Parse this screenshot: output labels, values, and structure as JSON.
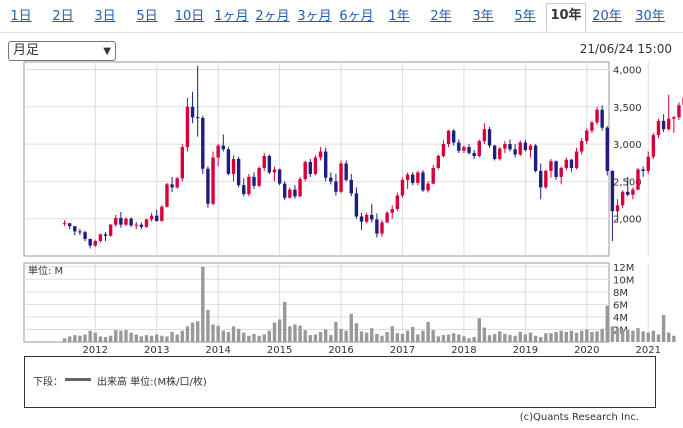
{
  "tabs": [
    {
      "label": "1日",
      "active": false
    },
    {
      "label": "2日",
      "active": false
    },
    {
      "label": "3日",
      "active": false
    },
    {
      "label": "5日",
      "active": false
    },
    {
      "label": "10日",
      "active": false
    },
    {
      "label": "1ヶ月",
      "active": false
    },
    {
      "label": "2ヶ月",
      "active": false
    },
    {
      "label": "3ヶ月",
      "active": false
    },
    {
      "label": "6ヶ月",
      "active": false
    },
    {
      "label": "1年",
      "active": false
    },
    {
      "label": "2年",
      "active": false
    },
    {
      "label": "3年",
      "active": false
    },
    {
      "label": "5年",
      "active": false
    },
    {
      "label": "10年",
      "active": true
    },
    {
      "label": "20年",
      "active": false
    },
    {
      "label": "30年",
      "active": false
    }
  ],
  "period_select": {
    "value": "月足"
  },
  "timestamp": "21/06/24 15:00",
  "volume_unit_label": "単位: M",
  "legend": {
    "label": "下段：",
    "item": "出来高 単位:(M株/口/枚)"
  },
  "credit": "(c)Quants Research Inc.",
  "colors": {
    "up": "#d8003a",
    "down": "#1e1e82",
    "volume": "#999999",
    "grid": "#dddddd"
  },
  "chart_data": [
    {
      "type": "candlestick",
      "title": "",
      "x_tick_labels": [
        "2012",
        "2013",
        "2014",
        "2015",
        "2016",
        "2017",
        "2018",
        "2019",
        "2020",
        "2021"
      ],
      "y_tick_labels": [
        "2,000",
        "2,500",
        "3,000",
        "3,500",
        "4,000"
      ],
      "ylim": [
        1500,
        4100
      ],
      "grid": true,
      "start": "2011-07",
      "end": "2021-06",
      "ohlc": [
        [
          1930,
          1980,
          1900,
          1940
        ],
        [
          1940,
          1920,
          1860,
          1900
        ],
        [
          1900,
          1880,
          1780,
          1830
        ],
        [
          1830,
          1860,
          1780,
          1820
        ],
        [
          1820,
          1840,
          1700,
          1730
        ],
        [
          1730,
          1730,
          1600,
          1640
        ],
        [
          1640,
          1720,
          1620,
          1700
        ],
        [
          1700,
          1800,
          1680,
          1790
        ],
        [
          1790,
          1820,
          1700,
          1770
        ],
        [
          1770,
          1930,
          1760,
          1920
        ],
        [
          1920,
          2050,
          1890,
          2010
        ],
        [
          2010,
          2090,
          1880,
          1920
        ],
        [
          1920,
          2020,
          1900,
          2000
        ],
        [
          2000,
          2020,
          1890,
          1910
        ],
        [
          1910,
          1960,
          1860,
          1920
        ],
        [
          1920,
          1950,
          1860,
          1890
        ],
        [
          1890,
          2000,
          1880,
          1990
        ],
        [
          1990,
          2080,
          1960,
          2040
        ],
        [
          2040,
          2120,
          1960,
          1970
        ],
        [
          1970,
          2180,
          1960,
          2160
        ],
        [
          2160,
          2480,
          2150,
          2460
        ],
        [
          2460,
          2560,
          2360,
          2420
        ],
        [
          2420,
          2560,
          2400,
          2540
        ],
        [
          2540,
          3000,
          2500,
          2960
        ],
        [
          2960,
          3620,
          2900,
          3500
        ],
        [
          3500,
          3700,
          3280,
          3360
        ],
        [
          3360,
          4050,
          3100,
          3350
        ],
        [
          3350,
          3380,
          2600,
          2670
        ],
        [
          2670,
          2700,
          2150,
          2200
        ],
        [
          2200,
          2900,
          2180,
          2820
        ],
        [
          2820,
          3000,
          2700,
          2980
        ],
        [
          2980,
          3130,
          2900,
          2930
        ],
        [
          2930,
          2960,
          2580,
          2600
        ],
        [
          2600,
          2850,
          2500,
          2800
        ],
        [
          2800,
          2830,
          2420,
          2450
        ],
        [
          2450,
          2540,
          2300,
          2330
        ],
        [
          2330,
          2600,
          2300,
          2560
        ],
        [
          2560,
          2620,
          2400,
          2440
        ],
        [
          2440,
          2700,
          2420,
          2680
        ],
        [
          2680,
          2880,
          2640,
          2840
        ],
        [
          2840,
          2860,
          2600,
          2620
        ],
        [
          2620,
          2700,
          2500,
          2660
        ],
        [
          2660,
          2670,
          2450,
          2470
        ],
        [
          2470,
          2500,
          2250,
          2280
        ],
        [
          2280,
          2420,
          2270,
          2390
        ],
        [
          2390,
          2450,
          2270,
          2300
        ],
        [
          2300,
          2560,
          2290,
          2530
        ],
        [
          2530,
          2780,
          2500,
          2760
        ],
        [
          2760,
          2800,
          2560,
          2600
        ],
        [
          2600,
          2850,
          2580,
          2820
        ],
        [
          2820,
          2960,
          2780,
          2900
        ],
        [
          2900,
          2950,
          2500,
          2550
        ],
        [
          2550,
          2620,
          2460,
          2500
        ],
        [
          2500,
          2600,
          2310,
          2360
        ],
        [
          2360,
          2780,
          2340,
          2740
        ],
        [
          2740,
          2780,
          2500,
          2520
        ],
        [
          2520,
          2600,
          2300,
          2340
        ],
        [
          2340,
          2420,
          2000,
          2030
        ],
        [
          2030,
          2080,
          1850,
          1960
        ],
        [
          1960,
          2080,
          1940,
          2050
        ],
        [
          2050,
          2200,
          1950,
          1990
        ],
        [
          1990,
          2070,
          1750,
          1800
        ],
        [
          1800,
          1980,
          1760,
          1950
        ],
        [
          1950,
          2100,
          1940,
          2080
        ],
        [
          2080,
          2180,
          2000,
          2130
        ],
        [
          2130,
          2350,
          2100,
          2310
        ],
        [
          2310,
          2550,
          2280,
          2520
        ],
        [
          2520,
          2620,
          2400,
          2590
        ],
        [
          2590,
          2620,
          2450,
          2480
        ],
        [
          2480,
          2640,
          2450,
          2620
        ],
        [
          2620,
          2650,
          2360,
          2380
        ],
        [
          2380,
          2500,
          2350,
          2470
        ],
        [
          2470,
          2720,
          2460,
          2680
        ],
        [
          2680,
          2860,
          2660,
          2840
        ],
        [
          2840,
          3050,
          2820,
          3000
        ],
        [
          3000,
          3190,
          2960,
          3180
        ],
        [
          3180,
          3200,
          2980,
          3020
        ],
        [
          3020,
          3060,
          2880,
          2910
        ],
        [
          2910,
          2980,
          2880,
          2960
        ],
        [
          2960,
          3000,
          2860,
          2880
        ],
        [
          2880,
          2920,
          2800,
          2840
        ],
        [
          2840,
          3060,
          2820,
          3040
        ],
        [
          3040,
          3280,
          3000,
          3200
        ],
        [
          3200,
          3230,
          2950,
          2980
        ],
        [
          2980,
          2990,
          2780,
          2800
        ],
        [
          2800,
          2960,
          2780,
          2940
        ],
        [
          2940,
          3040,
          2880,
          3000
        ],
        [
          3000,
          3060,
          2900,
          2930
        ],
        [
          2930,
          3000,
          2820,
          2860
        ],
        [
          2860,
          3050,
          2840,
          3020
        ],
        [
          3020,
          3060,
          2900,
          2920
        ],
        [
          2920,
          3000,
          2820,
          2980
        ],
        [
          2980,
          3000,
          2620,
          2640
        ],
        [
          2640,
          2740,
          2260,
          2420
        ],
        [
          2420,
          2660,
          2400,
          2640
        ],
        [
          2640,
          2800,
          2550,
          2770
        ],
        [
          2770,
          2780,
          2520,
          2560
        ],
        [
          2560,
          2700,
          2460,
          2680
        ],
        [
          2680,
          2820,
          2650,
          2790
        ],
        [
          2790,
          2800,
          2630,
          2680
        ],
        [
          2680,
          2950,
          2660,
          2900
        ],
        [
          2900,
          3080,
          2860,
          3040
        ],
        [
          3040,
          3210,
          3000,
          3180
        ],
        [
          3180,
          3310,
          3150,
          3290
        ],
        [
          3290,
          3500,
          3260,
          3460
        ],
        [
          3460,
          3520,
          3180,
          3220
        ],
        [
          3220,
          3240,
          2580,
          2640
        ],
        [
          2640,
          2650,
          1700,
          2100
        ],
        [
          2100,
          2260,
          1950,
          2180
        ],
        [
          2180,
          2380,
          2140,
          2360
        ],
        [
          2360,
          2560,
          2300,
          2320
        ],
        [
          2320,
          2420,
          2260,
          2390
        ],
        [
          2390,
          2680,
          2380,
          2660
        ],
        [
          2660,
          2700,
          2560,
          2640
        ],
        [
          2640,
          2900,
          2600,
          2830
        ],
        [
          2830,
          3150,
          2800,
          3120
        ],
        [
          3120,
          3340,
          3080,
          3310
        ],
        [
          3310,
          3400,
          3160,
          3200
        ],
        [
          3200,
          3660,
          3180,
          3340
        ],
        [
          3340,
          3380,
          3150,
          3360
        ],
        [
          3360,
          3560,
          3320,
          3520
        ],
        [
          3520,
          3660,
          3430,
          3620
        ]
      ]
    },
    {
      "type": "bar",
      "series_name": "出来高",
      "y_tick_labels": [
        "2M",
        "4M",
        "6M",
        "8M",
        "10M",
        "12M"
      ],
      "ylim": [
        0,
        12.6
      ],
      "unit": "M",
      "values": [
        0.6,
        0.9,
        1.1,
        1.0,
        1.2,
        1.8,
        1.5,
        0.9,
        0.8,
        1.0,
        1.9,
        1.8,
        1.9,
        1.5,
        1.2,
        0.9,
        1.1,
        1.0,
        1.2,
        1.0,
        0.9,
        1.6,
        1.2,
        1.8,
        2.5,
        3.1,
        3.3,
        12.0,
        5.1,
        2.8,
        2.6,
        1.8,
        1.6,
        2.5,
        2.1,
        1.5,
        1.0,
        1.3,
        1.0,
        1.2,
        1.8,
        3.1,
        3.6,
        6.4,
        2.5,
        2.8,
        2.6,
        1.9,
        1.1,
        1.2,
        1.6,
        2.0,
        1.1,
        3.2,
        2.1,
        1.8,
        4.5,
        3.0,
        1.7,
        1.5,
        2.2,
        1.3,
        1.0,
        1.6,
        2.5,
        1.4,
        1.3,
        1.8,
        2.4,
        1.2,
        1.8,
        3.2,
        1.9,
        0.9,
        1.1,
        1.2,
        1.4,
        1.2,
        0.9,
        0.6,
        0.8,
        3.8,
        2.3,
        1.1,
        1.3,
        1.7,
        1.3,
        1.1,
        1.0,
        1.6,
        1.2,
        1.5,
        1.0,
        0.8,
        1.4,
        1.4,
        1.6,
        1.8,
        1.6,
        1.8,
        1.5,
        1.8,
        2.0,
        1.6,
        1.7,
        2.1,
        5.8,
        2.5,
        2.3,
        2.0,
        2.0,
        1.8,
        2.2,
        1.7,
        1.5,
        1.8,
        1.2,
        4.3,
        1.5,
        1.0
      ]
    }
  ]
}
